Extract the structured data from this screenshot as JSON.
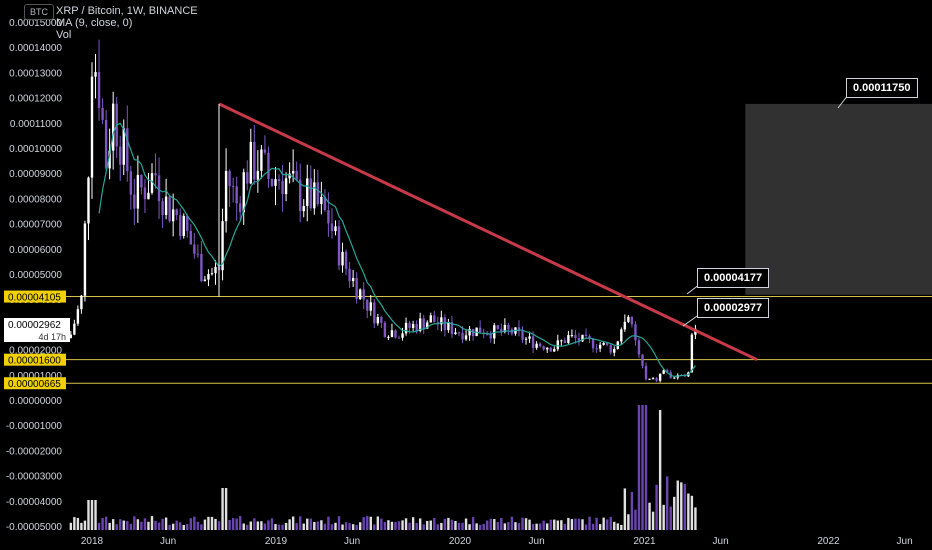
{
  "header": {
    "currency_badge": "BTC",
    "title": "XRP / Bitcoin, 1W, BINANCE",
    "indicator": "MA (9, close, 0)",
    "volume_label": "Vol"
  },
  "price_tag": {
    "value": "0.00002962",
    "countdown": "4d 17h"
  },
  "levels": [
    {
      "label": "0.00004105",
      "value": 4.105e-05
    },
    {
      "label": "0.00001600",
      "value": 1.6e-05
    },
    {
      "label": "0.00000665",
      "value": 6.65e-06
    }
  ],
  "callouts": [
    {
      "label": "0.00011750",
      "value": 0.0001175
    },
    {
      "label": "0.00004177",
      "value": 4.177e-05
    },
    {
      "label": "0.00002977",
      "value": 2.977e-05
    }
  ],
  "colors": {
    "background": "#000000",
    "up_candle": "#ffffff",
    "down_candle": "#7e57c2",
    "ma_line": "#26a69a",
    "trendline": "#c83a4a",
    "level_line": "#d4c34a",
    "level_tag_bg": "#f0d000",
    "target_box": "#3a3a3a"
  },
  "chart_data": {
    "type": "candlestick",
    "title": "XRP / Bitcoin, 1W, BINANCE",
    "y_axis_labels": [
      "0.00015000",
      "0.00014000",
      "0.00013000",
      "0.00012000",
      "0.00011000",
      "0.00010000",
      "0.00009000",
      "0.00008000",
      "0.00007000",
      "0.00006000",
      "0.00005000",
      "0.00004000",
      "0.00003000",
      "0.00002000",
      "0.00001000",
      "0.00000000",
      "-0.00001000",
      "-0.00002000",
      "-0.00003000",
      "-0.00004000",
      "-0.00005000"
    ],
    "x_axis_labels": [
      "2018",
      "Jun",
      "2019",
      "Jun",
      "2020",
      "Jun",
      "2021",
      "Jun",
      "2022",
      "Jun"
    ],
    "ylim": [
      -5.08e-05,
      0.000154
    ],
    "price_series_approx": {
      "dates": [
        "2017-12",
        "2018-01",
        "2018-02",
        "2018-04",
        "2018-06",
        "2018-08",
        "2018-09",
        "2018-11",
        "2019-01",
        "2019-03",
        "2019-05",
        "2019-06",
        "2019-08",
        "2019-10",
        "2020-01",
        "2020-04",
        "2020-07",
        "2020-10",
        "2020-11",
        "2020-12",
        "2021-01",
        "2021-02",
        "2021-03",
        "2021-04"
      ],
      "close": [
        3e-05,
        0.00014,
        0.00011,
        8e-05,
        7e-05,
        5e-05,
        9e-05,
        9e-05,
        9e-05,
        8e-05,
        6e-05,
        4e-05,
        3e-05,
        3e-05,
        3e-05,
        3e-05,
        2.5e-05,
        2.2e-05,
        4e-05,
        2e-05,
        8e-06,
        9e-06,
        1e-05,
        3e-05
      ]
    },
    "moving_average": {
      "name": "MA (9, close, 0)"
    },
    "trendline": {
      "from": {
        "date": "2018-09",
        "value": 0.0001175
      },
      "to": {
        "date": "2021-07",
        "value": 1.6e-05
      }
    },
    "target_zone": {
      "from_date": "2021-07",
      "to_date": "2022-08",
      "low": 4.177e-05,
      "high": 0.0001175
    },
    "horizontal_levels": [
      4.105e-05,
      1.6e-05,
      6.65e-06
    ],
    "volume": "histogram along bottom pane",
    "grid": false
  }
}
